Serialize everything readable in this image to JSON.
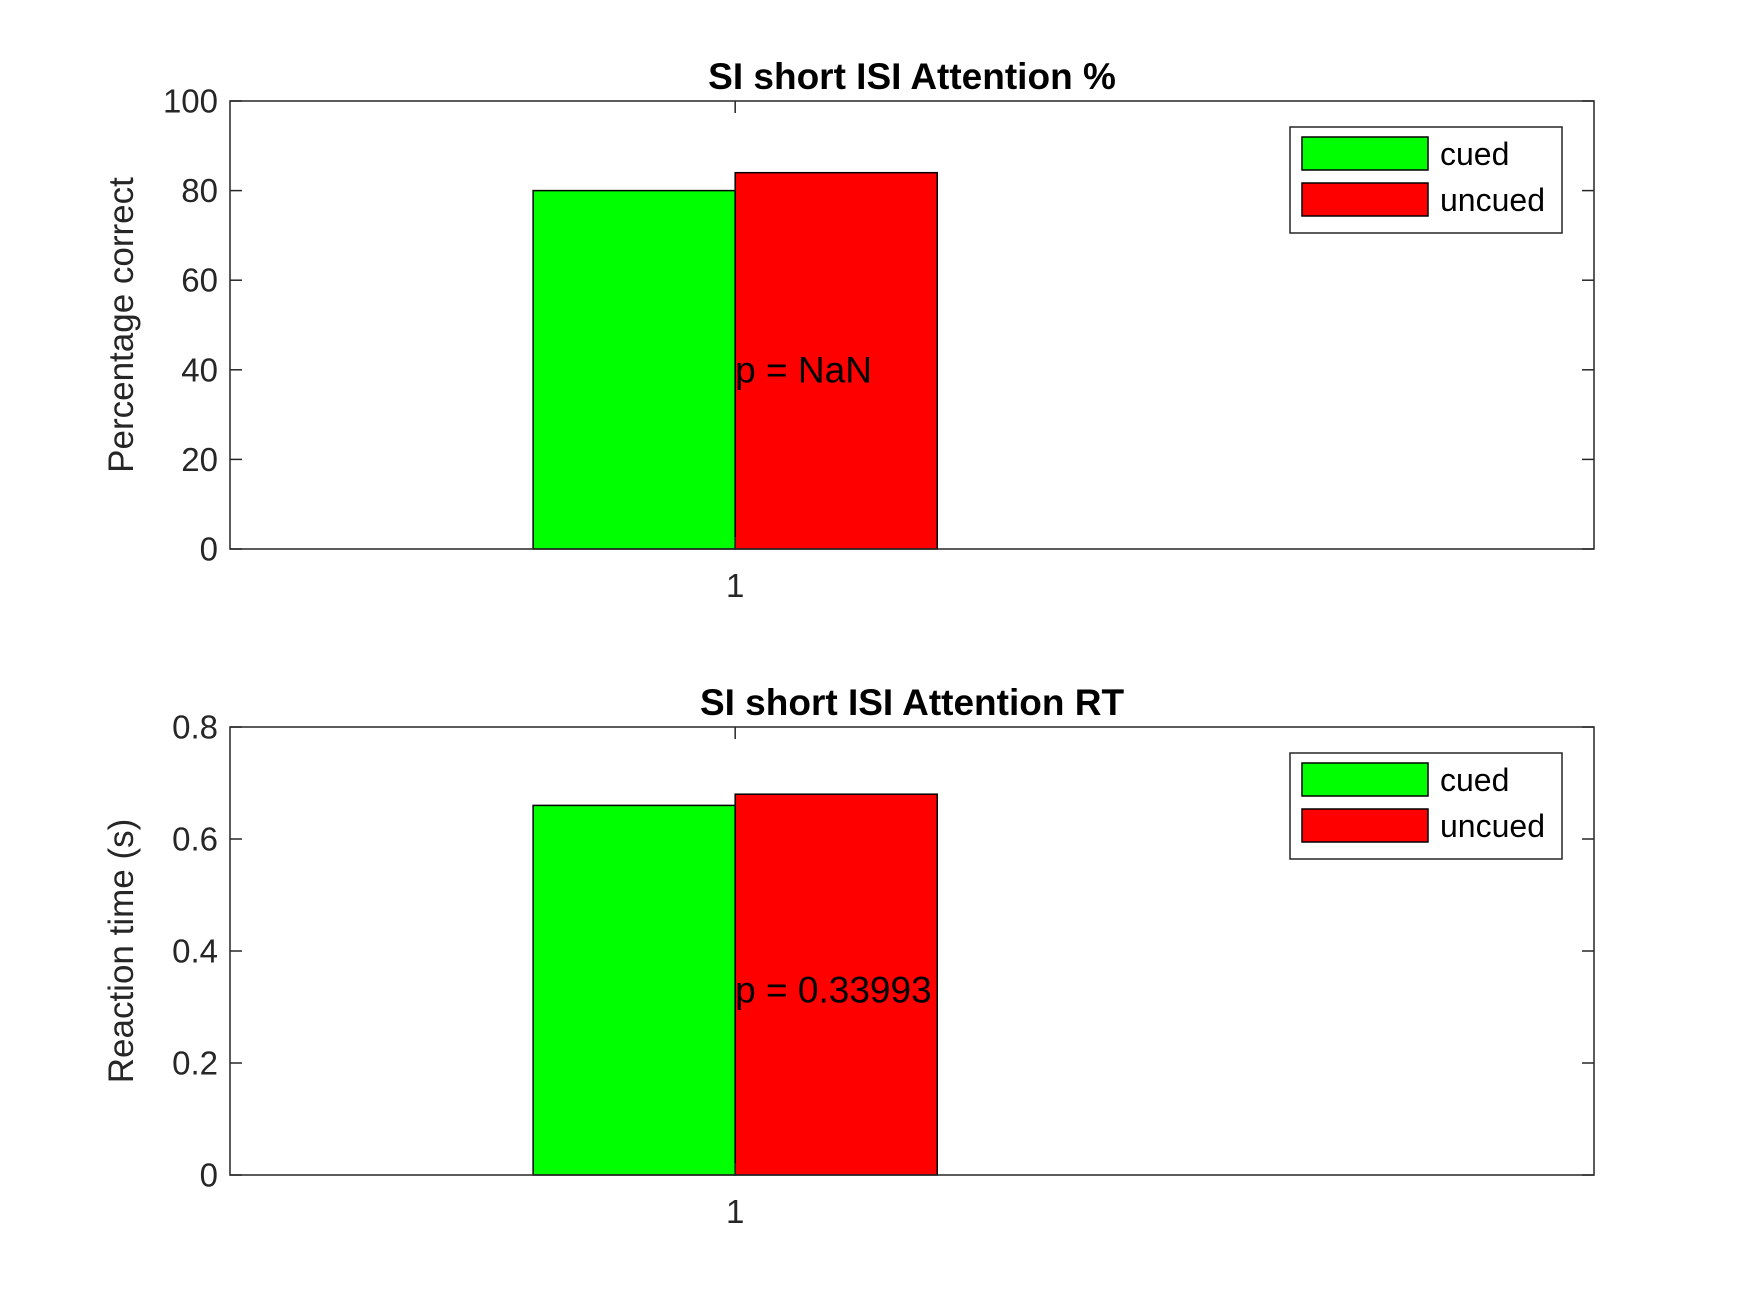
{
  "chart_data": [
    {
      "type": "bar",
      "title": "SI short ISI Attention %",
      "xlabel": "",
      "ylabel": "Percentage correct",
      "categories": [
        "1"
      ],
      "ylim": [
        0,
        100
      ],
      "yticks": [
        "0",
        "20",
        "40",
        "60",
        "80",
        "100"
      ],
      "series": [
        {
          "name": "cued",
          "values": [
            80
          ],
          "color": "#00ff00"
        },
        {
          "name": "uncued",
          "values": [
            84
          ],
          "color": "#ff0000"
        }
      ],
      "annotation": {
        "text": "p = NaN",
        "x": 1,
        "y": 40
      },
      "legend": "top-right",
      "grid": false
    },
    {
      "type": "bar",
      "title": "SI short ISI Attention RT",
      "xlabel": "",
      "ylabel": "Reaction time (s)",
      "categories": [
        "1"
      ],
      "ylim": [
        0,
        0.8
      ],
      "yticks": [
        "0",
        "0.2",
        "0.4",
        "0.6",
        "0.8"
      ],
      "series": [
        {
          "name": "cued",
          "values": [
            0.66
          ],
          "color": "#00ff00"
        },
        {
          "name": "uncued",
          "values": [
            0.68
          ],
          "color": "#ff0000"
        }
      ],
      "annotation": {
        "text": "p = 0.33993",
        "x": 1,
        "y": 0.33
      },
      "legend": "top-right",
      "grid": false
    }
  ]
}
